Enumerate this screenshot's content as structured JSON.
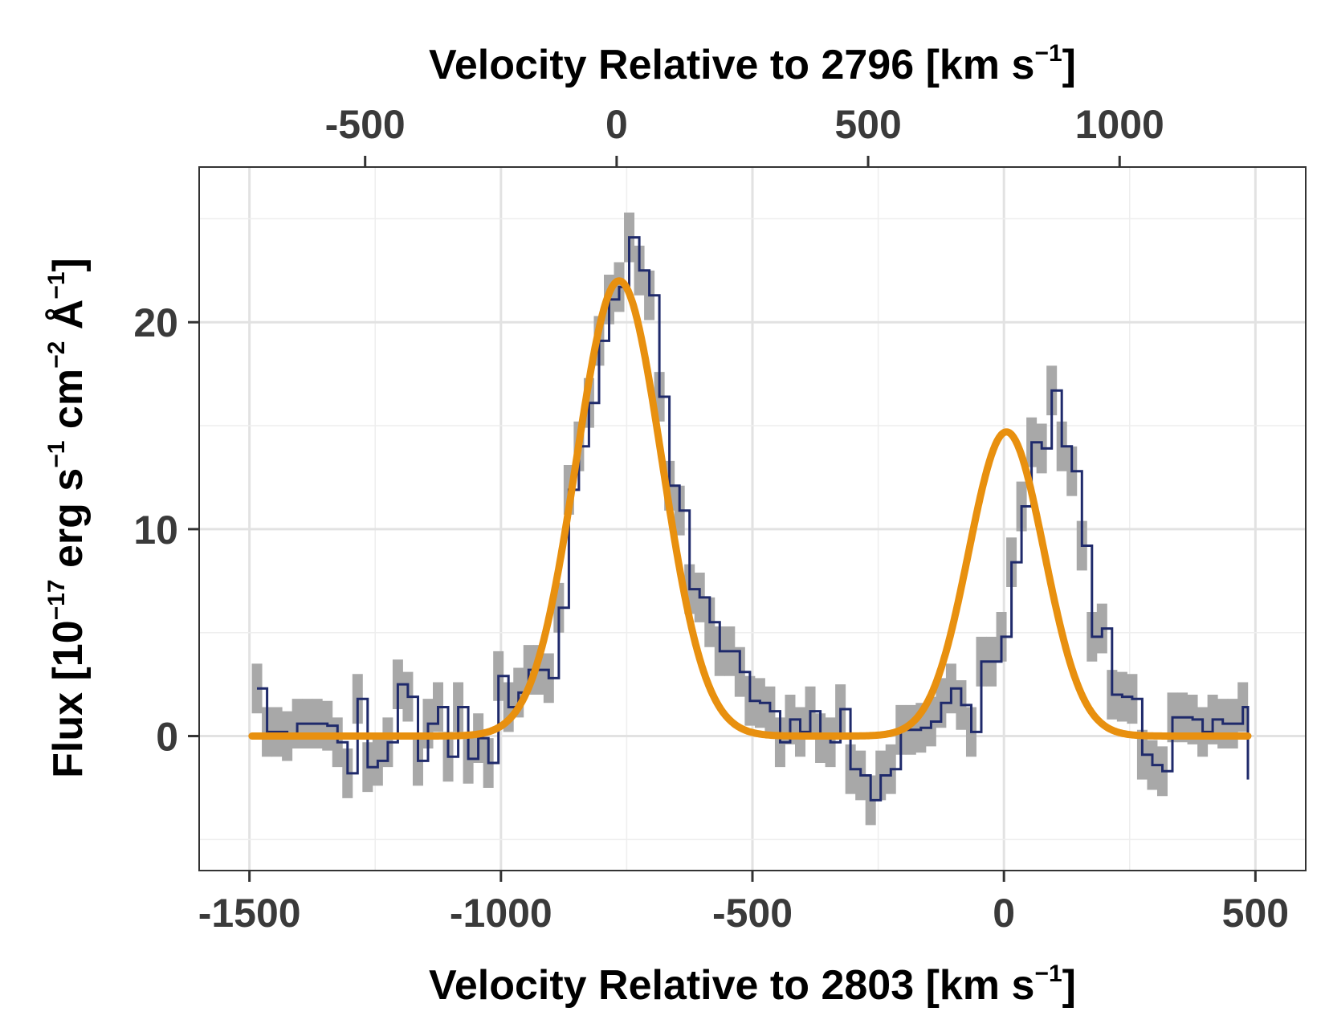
{
  "chart_data": {
    "type": "line",
    "x_axis_bottom": {
      "label_main": "Velocity Relative to 2803 [km s",
      "label_sup": "−1",
      "label_end": "]",
      "range": [
        -1600,
        600
      ],
      "ticks": [
        -1500,
        -1000,
        -500,
        0,
        500
      ],
      "tick_labels": [
        "-1500",
        "-1000",
        "-500",
        "0",
        "500"
      ]
    },
    "x_axis_top": {
      "label_main": "Velocity Relative to 2796 [km s",
      "label_sup": "−1",
      "label_end": "]",
      "offset_from_bottom": -770,
      "ticks": [
        -500,
        0,
        500,
        1000
      ],
      "tick_labels": [
        "-500",
        "0",
        "500",
        "1000"
      ]
    },
    "y_axis": {
      "label_pre": "Flux [10",
      "label_sup1": "−17",
      "label_mid1": " erg s",
      "label_sup2": "−1",
      "label_mid2": " cm",
      "label_sup3": "−2",
      "label_mid3": " Å",
      "label_sup4": "−1",
      "label_end": "]",
      "range": [
        -6.5,
        27.5
      ],
      "ticks": [
        0,
        10,
        20
      ],
      "tick_labels": [
        "0",
        "10",
        "20"
      ],
      "minor_ticks": [
        -5,
        5,
        15,
        25
      ]
    },
    "series": [
      {
        "name": "data",
        "style": "step",
        "color": "#1f2a6b",
        "error_color": "#a8a8a8",
        "x": [
          -1485,
          -1465,
          -1445,
          -1425,
          -1405,
          -1385,
          -1365,
          -1345,
          -1325,
          -1305,
          -1285,
          -1265,
          -1245,
          -1225,
          -1205,
          -1185,
          -1165,
          -1145,
          -1125,
          -1105,
          -1085,
          -1065,
          -1045,
          -1025,
          -1005,
          -985,
          -965,
          -945,
          -925,
          -905,
          -885,
          -865,
          -845,
          -825,
          -805,
          -785,
          -765,
          -745,
          -725,
          -705,
          -685,
          -665,
          -645,
          -625,
          -605,
          -585,
          -565,
          -545,
          -525,
          -505,
          -485,
          -465,
          -445,
          -425,
          -405,
          -385,
          -365,
          -345,
          -325,
          -305,
          -285,
          -265,
          -245,
          -225,
          -205,
          -185,
          -165,
          -145,
          -125,
          -105,
          -85,
          -65,
          -45,
          -25,
          -5,
          15,
          35,
          55,
          75,
          95,
          115,
          135,
          155,
          175,
          195,
          215,
          235,
          255,
          275,
          295,
          315,
          335,
          355,
          375,
          395,
          415,
          435,
          455,
          475
        ],
        "y": [
          2.3,
          0.2,
          0.2,
          0.0,
          0.6,
          0.6,
          0.6,
          0.5,
          -0.3,
          -1.8,
          1.8,
          -1.5,
          -1.2,
          -0.3,
          2.5,
          1.9,
          -1.2,
          0.6,
          1.4,
          -1.0,
          1.4,
          -1.1,
          -0.1,
          -1.3,
          2.9,
          1.4,
          2.1,
          3.2,
          3.2,
          2.8,
          6.2,
          11.9,
          14.0,
          16.1,
          19.1,
          21.1,
          21.7,
          24.1,
          22.5,
          21.3,
          16.4,
          12.1,
          10.9,
          7.1,
          6.7,
          5.5,
          4.1,
          4.1,
          3.1,
          1.7,
          1.6,
          1.2,
          -0.3,
          0.8,
          0.2,
          1.2,
          -0.1,
          -0.3,
          1.3,
          -1.6,
          -1.9,
          -3.1,
          -1.9,
          -1.6,
          0.3,
          0.3,
          0.4,
          0.7,
          1.6,
          2.3,
          1.5,
          0.2,
          3.6,
          3.6,
          4.8,
          8.4,
          11.1,
          14.2,
          13.9,
          16.7,
          14.0,
          12.8,
          9.2,
          4.8,
          5.2,
          2.0,
          1.9,
          1.8,
          -0.9,
          -1.4,
          -1.7,
          0.9,
          0.9,
          0.8,
          0.2,
          0.8,
          0.6,
          0.6,
          1.4
        ],
        "errors": [
          1.2,
          1.2,
          1.2,
          1.2,
          1.2,
          1.2,
          1.2,
          1.2,
          1.2,
          1.2,
          1.2,
          1.2,
          1.2,
          1.2,
          1.2,
          1.2,
          1.2,
          1.2,
          1.2,
          1.2,
          1.2,
          1.2,
          1.2,
          1.2,
          1.2,
          1.2,
          1.2,
          1.2,
          1.2,
          1.2,
          1.2,
          1.2,
          1.2,
          1.2,
          1.2,
          1.2,
          1.2,
          1.2,
          1.2,
          1.2,
          1.2,
          1.2,
          1.2,
          1.2,
          1.2,
          1.2,
          1.2,
          1.2,
          1.2,
          1.2,
          1.2,
          1.2,
          1.2,
          1.2,
          1.2,
          1.2,
          1.2,
          1.2,
          1.2,
          1.2,
          1.2,
          1.2,
          1.2,
          1.2,
          1.2,
          1.2,
          1.2,
          1.2,
          1.2,
          1.2,
          1.2,
          1.2,
          1.2,
          1.2,
          1.2,
          1.2,
          1.2,
          1.2,
          1.2,
          1.2,
          1.2,
          1.2,
          1.2,
          1.2,
          1.2,
          1.2,
          1.2,
          1.2,
          1.2,
          1.2,
          1.2,
          1.2,
          1.2,
          1.2,
          1.2,
          1.2,
          1.2,
          1.2,
          1.2
        ],
        "x_end": 485,
        "y_end": -2.1
      },
      {
        "name": "model",
        "style": "line",
        "color": "#e8900f",
        "components": [
          {
            "amplitude": 22.0,
            "center": -765,
            "sigma": 85
          },
          {
            "amplitude": 14.7,
            "center": 5,
            "sigma": 75
          }
        ],
        "x_range": [
          -1495,
          485
        ]
      }
    ]
  }
}
